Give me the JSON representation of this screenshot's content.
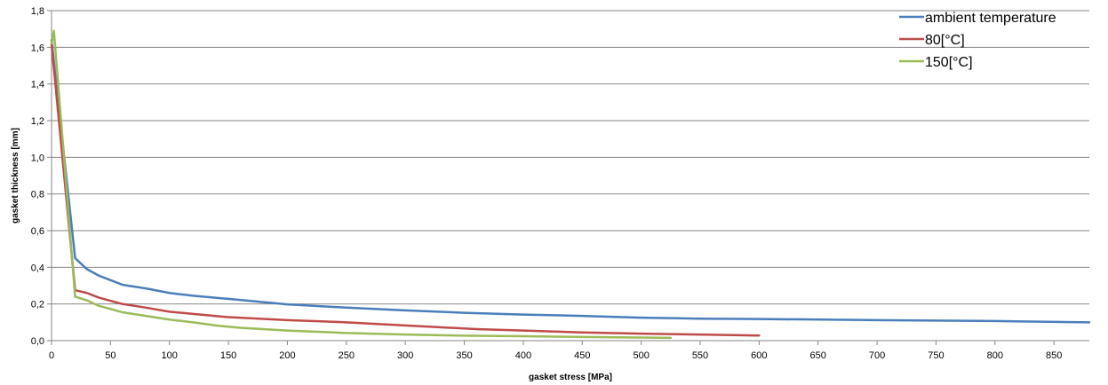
{
  "chart_data": {
    "type": "line",
    "xlabel": "gasket stress [MPa]",
    "ylabel": "gasket thickness [mm]",
    "xlim": [
      0,
      880
    ],
    "ylim": [
      0,
      1.8
    ],
    "x_ticks": [
      "0",
      "50",
      "100",
      "150",
      "200",
      "250",
      "300",
      "350",
      "400",
      "450",
      "500",
      "550",
      "600",
      "650",
      "700",
      "750",
      "800",
      "850"
    ],
    "y_ticks": [
      "0,0",
      "0,2",
      "0,4",
      "0,6",
      "0,8",
      "1,0",
      "1,2",
      "1,4",
      "1,6",
      "1,8"
    ],
    "grid": "horizontal",
    "legend_position": "top-right",
    "series": [
      {
        "name": "ambient temperature",
        "color": "#4A7EBB",
        "x": [
          0,
          20,
          30,
          40,
          50,
          60,
          80,
          100,
          120,
          150,
          200,
          250,
          300,
          350,
          400,
          450,
          500,
          550,
          600,
          700,
          800,
          880
        ],
        "y": [
          1.64,
          0.45,
          0.39,
          0.355,
          0.33,
          0.305,
          0.285,
          0.26,
          0.245,
          0.228,
          0.198,
          0.18,
          0.165,
          0.152,
          0.142,
          0.135,
          0.125,
          0.12,
          0.118,
          0.112,
          0.107,
          0.1
        ]
      },
      {
        "name": "80[°C]",
        "color": "#BE4B48",
        "x": [
          0,
          20,
          30,
          40,
          60,
          80,
          100,
          150,
          200,
          250,
          300,
          360,
          400,
          450,
          500,
          550,
          600
        ],
        "y": [
          1.62,
          0.275,
          0.26,
          0.235,
          0.2,
          0.18,
          0.158,
          0.128,
          0.112,
          0.1,
          0.083,
          0.063,
          0.055,
          0.045,
          0.038,
          0.033,
          0.028
        ]
      },
      {
        "name": "150[°C]",
        "color": "#9BBB59",
        "x": [
          0,
          2,
          20,
          30,
          40,
          60,
          80,
          100,
          120,
          140,
          160,
          200,
          250,
          300,
          350,
          400,
          450,
          500,
          525
        ],
        "y": [
          1.62,
          1.69,
          0.24,
          0.22,
          0.19,
          0.155,
          0.135,
          0.115,
          0.1,
          0.082,
          0.07,
          0.055,
          0.042,
          0.033,
          0.027,
          0.024,
          0.02,
          0.017,
          0.015
        ]
      }
    ]
  }
}
